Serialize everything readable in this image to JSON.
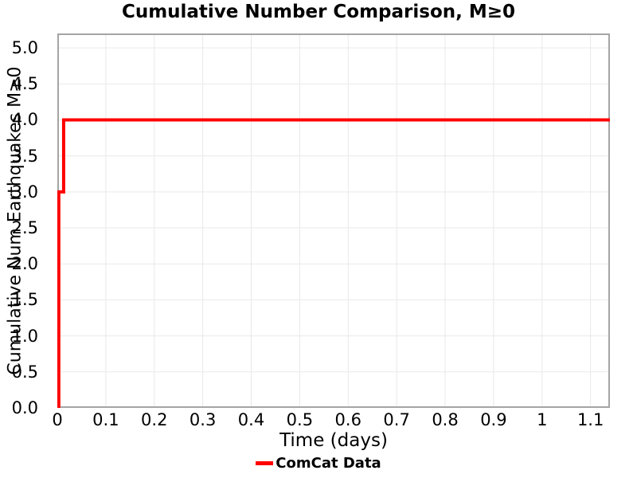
{
  "chart_data": {
    "type": "line",
    "subtype": "cumulative-step",
    "title": "Cumulative Number Comparison, M≥0",
    "xlabel": "Time (days)",
    "ylabel": "Cumulative Num Earthquakes M≥0",
    "xlim": [
      0,
      1.14
    ],
    "ylim": [
      0,
      5.2
    ],
    "x_ticks": [
      0,
      0.1,
      0.2,
      0.3,
      0.4,
      0.5,
      0.6,
      0.7,
      0.8,
      0.9,
      1,
      1.1
    ],
    "x_tick_labels": [
      "0",
      "0.1",
      "0.2",
      "0.3",
      "0.4",
      "0.5",
      "0.6",
      "0.7",
      "0.8",
      "0.9",
      "1",
      "1.1"
    ],
    "y_ticks": [
      0,
      0.5,
      1,
      1.5,
      2,
      2.5,
      3,
      3.5,
      4,
      4.5,
      5
    ],
    "y_tick_labels": [
      "0.0",
      "0.5",
      "1.0",
      "1.5",
      "2.0",
      "2.5",
      "3.0",
      "3.5",
      "4.0",
      "4.5",
      "5.0"
    ],
    "grid": true,
    "colors": {
      "grid": "#e9e9e9",
      "frame": "#a5a5a5",
      "background": "#ffffff",
      "text": "#000000"
    },
    "legend": {
      "position": "bottom-center",
      "entries": [
        {
          "label": "ComCat Data",
          "color": "#ff0000"
        }
      ]
    },
    "series": [
      {
        "name": "ComCat Data",
        "color": "#ff0000",
        "line_width": 4,
        "points": [
          [
            0,
            0
          ],
          [
            0.003,
            0
          ],
          [
            0.003,
            3
          ],
          [
            0.013,
            3
          ],
          [
            0.013,
            4
          ],
          [
            1.14,
            4
          ]
        ]
      }
    ]
  }
}
